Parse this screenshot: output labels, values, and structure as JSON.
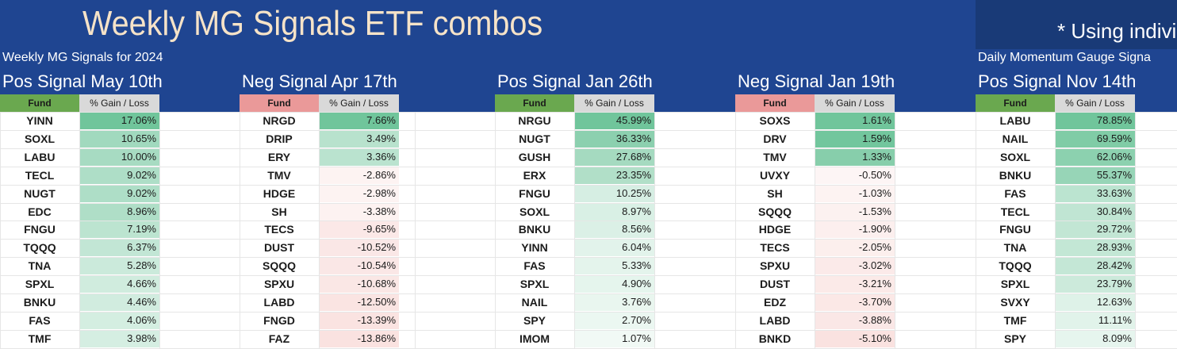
{
  "banner": {
    "title": "Weekly MG Signals ETF combos",
    "note": "* Using individ",
    "subtitle_left": "Weekly MG Signals for 2024",
    "subtitle_right": "Daily Momentum Gauge Signa"
  },
  "column_headers": {
    "fund": "Fund",
    "gain": "% Gain / Loss"
  },
  "colors": {
    "banner": "#1f4591",
    "pos_header": "#6aa84f",
    "neg_header": "#ea9999",
    "gain_header": "#d9d9d9"
  },
  "tables": [
    {
      "title": "Pos Signal May 10th",
      "kind": "pos",
      "rows": [
        {
          "fund": "YINN",
          "gain": "17.06%"
        },
        {
          "fund": "SOXL",
          "gain": "10.65%"
        },
        {
          "fund": "LABU",
          "gain": "10.00%"
        },
        {
          "fund": "TECL",
          "gain": "9.02%"
        },
        {
          "fund": "NUGT",
          "gain": "9.02%"
        },
        {
          "fund": "EDC",
          "gain": "8.96%"
        },
        {
          "fund": "FNGU",
          "gain": "7.19%"
        },
        {
          "fund": "TQQQ",
          "gain": "6.37%"
        },
        {
          "fund": "TNA",
          "gain": "5.28%"
        },
        {
          "fund": "SPXL",
          "gain": "4.66%"
        },
        {
          "fund": "BNKU",
          "gain": "4.46%"
        },
        {
          "fund": "FAS",
          "gain": "4.06%"
        },
        {
          "fund": "TMF",
          "gain": "3.98%"
        }
      ]
    },
    {
      "title": "Neg Signal Apr 17th",
      "kind": "neg",
      "rows": [
        {
          "fund": "NRGD",
          "gain": "7.66%"
        },
        {
          "fund": "DRIP",
          "gain": "3.49%"
        },
        {
          "fund": "ERY",
          "gain": "3.36%"
        },
        {
          "fund": "TMV",
          "gain": "-2.86%"
        },
        {
          "fund": "HDGE",
          "gain": "-2.98%"
        },
        {
          "fund": "SH",
          "gain": "-3.38%"
        },
        {
          "fund": "TECS",
          "gain": "-9.65%"
        },
        {
          "fund": "DUST",
          "gain": "-10.52%"
        },
        {
          "fund": "SQQQ",
          "gain": "-10.54%"
        },
        {
          "fund": "SPXU",
          "gain": "-10.68%"
        },
        {
          "fund": "LABD",
          "gain": "-12.50%"
        },
        {
          "fund": "FNGD",
          "gain": "-13.39%"
        },
        {
          "fund": "FAZ",
          "gain": "-13.86%"
        }
      ]
    },
    {
      "title": "Pos Signal Jan 26th",
      "kind": "pos",
      "rows": [
        {
          "fund": "NRGU",
          "gain": "45.99%"
        },
        {
          "fund": "NUGT",
          "gain": "36.33%"
        },
        {
          "fund": "GUSH",
          "gain": "27.68%"
        },
        {
          "fund": "ERX",
          "gain": "23.35%"
        },
        {
          "fund": "FNGU",
          "gain": "10.25%"
        },
        {
          "fund": "SOXL",
          "gain": "8.97%"
        },
        {
          "fund": "BNKU",
          "gain": "8.56%"
        },
        {
          "fund": "YINN",
          "gain": "6.04%"
        },
        {
          "fund": "FAS",
          "gain": "5.33%"
        },
        {
          "fund": "SPXL",
          "gain": "4.90%"
        },
        {
          "fund": "NAIL",
          "gain": "3.76%"
        },
        {
          "fund": "SPY",
          "gain": "2.70%"
        },
        {
          "fund": "IMOM",
          "gain": "1.07%"
        }
      ]
    },
    {
      "title": "Neg Signal Jan 19th",
      "kind": "neg",
      "rows": [
        {
          "fund": "SOXS",
          "gain": "1.61%"
        },
        {
          "fund": "DRV",
          "gain": "1.59%"
        },
        {
          "fund": "TMV",
          "gain": "1.33%"
        },
        {
          "fund": "UVXY",
          "gain": "-0.50%"
        },
        {
          "fund": "SH",
          "gain": "-1.03%"
        },
        {
          "fund": "SQQQ",
          "gain": "-1.53%"
        },
        {
          "fund": "HDGE",
          "gain": "-1.90%"
        },
        {
          "fund": "TECS",
          "gain": "-2.05%"
        },
        {
          "fund": "SPXU",
          "gain": "-3.02%"
        },
        {
          "fund": "DUST",
          "gain": "-3.21%"
        },
        {
          "fund": "EDZ",
          "gain": "-3.70%"
        },
        {
          "fund": "LABD",
          "gain": "-3.88%"
        },
        {
          "fund": "BNKD",
          "gain": "-5.10%"
        }
      ]
    },
    {
      "title": "Pos Signal Nov 14th",
      "kind": "pos",
      "rows": [
        {
          "fund": "LABU",
          "gain": "78.85%"
        },
        {
          "fund": "NAIL",
          "gain": "69.59%"
        },
        {
          "fund": "SOXL",
          "gain": "62.06%"
        },
        {
          "fund": "BNKU",
          "gain": "55.37%"
        },
        {
          "fund": "FAS",
          "gain": "33.63%"
        },
        {
          "fund": "TECL",
          "gain": "30.84%"
        },
        {
          "fund": "FNGU",
          "gain": "29.72%"
        },
        {
          "fund": "TNA",
          "gain": "28.93%"
        },
        {
          "fund": "TQQQ",
          "gain": "28.42%"
        },
        {
          "fund": "SPXL",
          "gain": "23.79%"
        },
        {
          "fund": "SVXY",
          "gain": "12.63%"
        },
        {
          "fund": "TMF",
          "gain": "11.11%"
        },
        {
          "fund": "SPY",
          "gain": "8.09%"
        }
      ]
    }
  ]
}
